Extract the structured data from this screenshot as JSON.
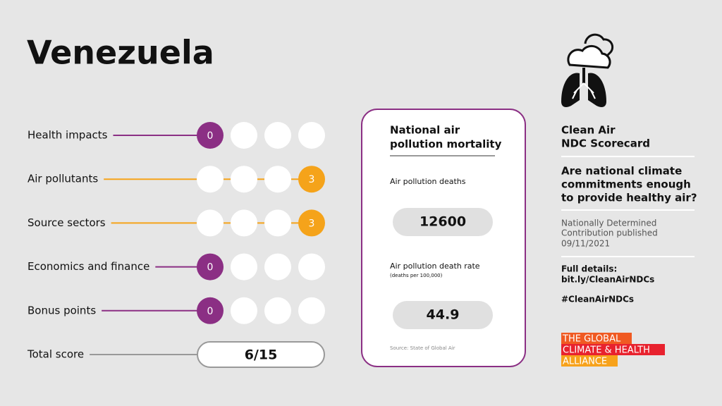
{
  "title": "Venezuela",
  "rows": [
    {
      "label": "Health impacts",
      "score": 0,
      "color": "#8b2f84"
    },
    {
      "label": "Air pollutants",
      "score": 3,
      "color": "#f5a31a"
    },
    {
      "label": "Source sectors",
      "score": 3,
      "color": "#f5a31a"
    },
    {
      "label": "Economics and finance",
      "score": 0,
      "color": "#8b2f84"
    },
    {
      "label": "Bonus points",
      "score": 0,
      "color": "#8b2f84"
    }
  ],
  "total": {
    "label": "Total score",
    "value": "6/15"
  },
  "panel": {
    "title": [
      "National air",
      "pollution mortality"
    ],
    "deaths_label": "Air pollution deaths",
    "deaths": 12600,
    "rate_label": "Air pollution death rate",
    "rate_note": "(deaths per 100,000)",
    "rate": 44.9,
    "source": "Source: State of Global Air"
  },
  "sidebar": {
    "heading": [
      "Clean Air",
      "NDC Scorecard"
    ],
    "question": [
      "Are national climate",
      "commitments enough",
      "to provide healthy air?"
    ],
    "ndc": [
      "Nationally Determined",
      "Contribution published",
      "09/11/2021"
    ],
    "details": [
      "Full details:",
      "bit.ly/CleanAirNDCs"
    ],
    "hashtag": "#CleanAirNDCs",
    "logo": [
      "THE GLOBAL",
      "CLIMATE & HEALTH",
      "ALLIANCE"
    ]
  }
}
